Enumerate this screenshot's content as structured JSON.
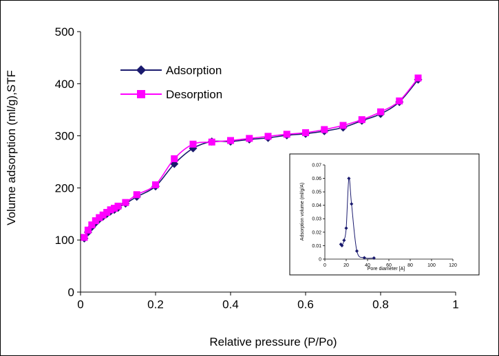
{
  "chart_data": [
    {
      "type": "line",
      "title": "",
      "xlabel": "Relative pressure (P/Po)",
      "ylabel": "Volume adsorption (ml/g),STF",
      "xlim": [
        0,
        1
      ],
      "ylim": [
        0,
        500
      ],
      "xticks": [
        "0",
        "0.2",
        "0.4",
        "0.6",
        "0.8",
        "1"
      ],
      "yticks": [
        "0",
        "100",
        "200",
        "300",
        "400",
        "500"
      ],
      "grid": false,
      "legend": "top-left",
      "series": [
        {
          "name": "Adsorption",
          "color": "#1a1a6e",
          "marker": "diamond",
          "x": [
            0.01,
            0.02,
            0.03,
            0.04,
            0.05,
            0.06,
            0.07,
            0.08,
            0.09,
            0.1,
            0.12,
            0.15,
            0.2,
            0.25,
            0.3,
            0.35,
            0.4,
            0.45,
            0.5,
            0.55,
            0.6,
            0.65,
            0.7,
            0.75,
            0.8,
            0.85,
            0.9
          ],
          "y": [
            103,
            115,
            125,
            133,
            140,
            145,
            150,
            155,
            158,
            162,
            170,
            183,
            203,
            246,
            276,
            289,
            289,
            293,
            296,
            301,
            304,
            309,
            316,
            329,
            342,
            365,
            408
          ]
        },
        {
          "name": "Desorption",
          "color": "#ff00ff",
          "marker": "square",
          "x": [
            0.01,
            0.02,
            0.03,
            0.04,
            0.05,
            0.06,
            0.07,
            0.08,
            0.09,
            0.1,
            0.12,
            0.15,
            0.2,
            0.25,
            0.3,
            0.35,
            0.4,
            0.45,
            0.5,
            0.55,
            0.6,
            0.65,
            0.7,
            0.75,
            0.8,
            0.85,
            0.9
          ],
          "y": [
            105,
            119,
            129,
            137,
            143,
            148,
            153,
            158,
            161,
            165,
            172,
            187,
            206,
            256,
            284,
            288,
            291,
            295,
            299,
            303,
            306,
            312,
            320,
            331,
            346,
            367,
            411
          ]
        }
      ]
    },
    {
      "type": "line",
      "title": "",
      "xlabel": "Pore diameter [A]",
      "ylabel": "Adsorption volume (ml/g/A)",
      "xlim": [
        0,
        120
      ],
      "ylim": [
        0,
        0.07
      ],
      "xticks": [
        "0",
        "20",
        "40",
        "60",
        "80",
        "100",
        "120"
      ],
      "yticks": [
        "0",
        "0.01",
        "0.02",
        "0.03",
        "0.04",
        "0.05",
        "0.06",
        "0.07"
      ],
      "grid": false,
      "series": [
        {
          "color": "#1a1a6e",
          "marker": "diamond",
          "x": [
            15,
            16,
            18,
            20,
            22.5,
            25,
            30,
            37,
            46
          ],
          "y": [
            0.011,
            0.01,
            0.014,
            0.023,
            0.06,
            0.041,
            0.006,
            0.001,
            0.0008
          ]
        }
      ]
    }
  ]
}
